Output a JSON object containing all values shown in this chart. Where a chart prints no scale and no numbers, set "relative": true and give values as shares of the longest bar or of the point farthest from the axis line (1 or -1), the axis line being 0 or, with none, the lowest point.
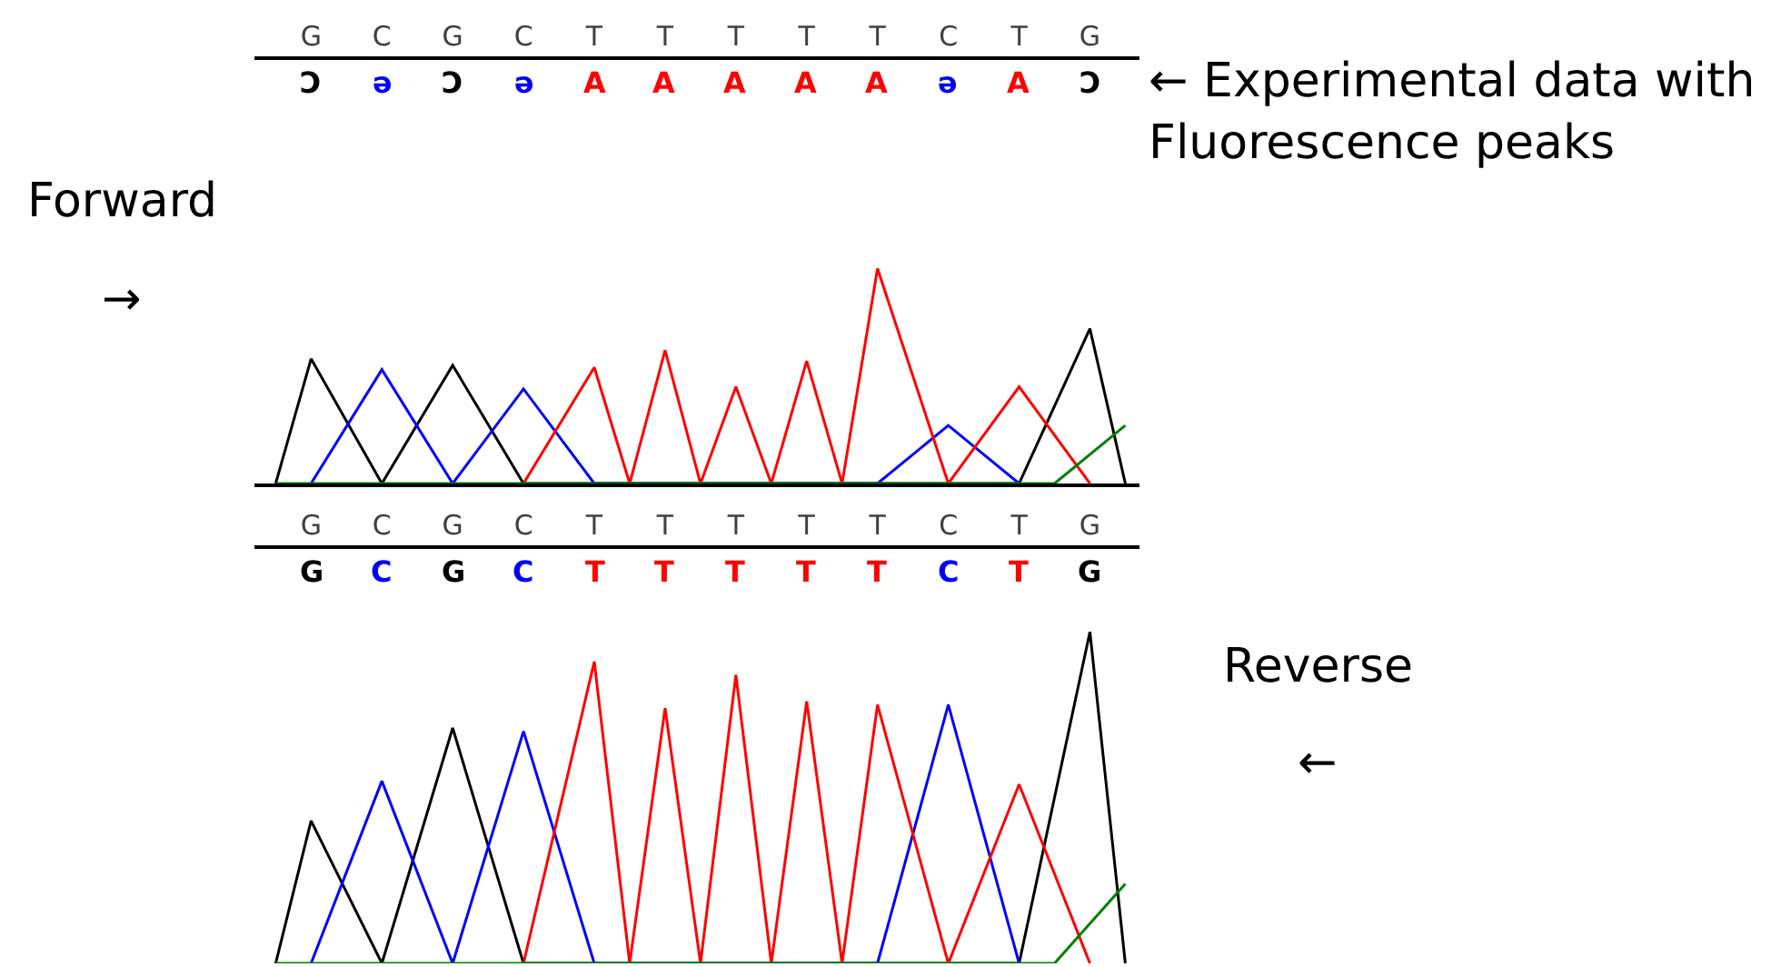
{
  "chart_data": [
    {
      "type": "line",
      "relative": true,
      "marker": "none",
      "line_style": "solid",
      "categories": [
        null,
        "G",
        null,
        "C",
        null,
        "G",
        null,
        "C",
        null,
        "T",
        null,
        "T",
        null,
        "T",
        null,
        "T",
        null,
        "T",
        null,
        "C",
        null,
        "T",
        null,
        "G",
        null
      ],
      "series": [
        {
          "color": "#000000",
          "values": [
            0,
            0.58,
            null,
            0,
            null,
            0.55,
            null,
            0,
            null,
            null,
            null,
            null,
            null,
            null,
            null,
            null,
            null,
            null,
            null,
            null,
            null,
            0,
            null,
            0.72,
            0
          ]
        },
        {
          "color": "#0000ff",
          "values": [
            null,
            0,
            null,
            0.53,
            null,
            0,
            null,
            0.44,
            null,
            0,
            null,
            null,
            null,
            null,
            null,
            null,
            null,
            0,
            null,
            0.27,
            null,
            0,
            null,
            null,
            null
          ]
        },
        {
          "color": "#ff0000",
          "values": [
            null,
            null,
            null,
            null,
            null,
            null,
            null,
            0,
            null,
            0.54,
            0,
            0.62,
            0,
            0.45,
            0,
            0.57,
            0,
            1,
            null,
            0,
            null,
            0.45,
            null,
            0,
            null
          ]
        },
        {
          "color": "#008000",
          "values": [
            0,
            null,
            null,
            null,
            null,
            null,
            null,
            null,
            null,
            null,
            null,
            null,
            null,
            null,
            null,
            null,
            null,
            null,
            null,
            null,
            null,
            null,
            0,
            null,
            0.27
          ]
        }
      ],
      "annotations": [
        "← Experimental data with\nFluorescence peaks",
        "Forward",
        "→",
        {
          "text": "Ɔ"
        },
        {
          "text": "ə"
        },
        {
          "text": "Ɔ"
        },
        {
          "text": "ə"
        },
        {
          "text": "A"
        },
        {
          "text": "A"
        },
        {
          "text": "A"
        },
        {
          "text": "A"
        },
        {
          "text": "A"
        },
        {
          "text": "ə"
        },
        {
          "text": "A"
        },
        {
          "text": "Ɔ"
        }
      ]
    },
    {
      "type": "line",
      "relative": true,
      "marker": "none",
      "line_style": "solid",
      "categories": [
        null,
        "G",
        null,
        "C",
        null,
        "G",
        null,
        "C",
        null,
        "T",
        null,
        "T",
        null,
        "T",
        null,
        "T",
        null,
        "T",
        null,
        "C",
        null,
        "T",
        null,
        "G",
        null
      ],
      "series": [
        {
          "color": "#000000",
          "values": [
            0,
            0.43,
            null,
            0,
            null,
            0.71,
            null,
            0,
            null,
            null,
            null,
            null,
            null,
            null,
            null,
            null,
            null,
            null,
            null,
            null,
            null,
            0,
            null,
            1,
            0
          ]
        },
        {
          "color": "#0000ff",
          "values": [
            null,
            0,
            null,
            0.55,
            null,
            0,
            null,
            0.7,
            null,
            0,
            null,
            null,
            null,
            null,
            null,
            null,
            null,
            0,
            null,
            0.78,
            null,
            0,
            null,
            null,
            null
          ]
        },
        {
          "color": "#ff0000",
          "values": [
            null,
            null,
            null,
            null,
            null,
            null,
            null,
            0,
            null,
            0.91,
            0,
            0.77,
            0,
            0.87,
            0,
            0.79,
            0,
            0.78,
            null,
            0,
            null,
            0.54,
            null,
            0,
            null
          ]
        },
        {
          "color": "#008000",
          "values": [
            0,
            null,
            null,
            null,
            null,
            null,
            null,
            null,
            null,
            null,
            null,
            null,
            null,
            null,
            null,
            null,
            null,
            null,
            null,
            null,
            null,
            null,
            0,
            null,
            0.24
          ]
        }
      ],
      "annotations": [
        "Reverse",
        "←",
        {
          "text": "G"
        },
        {
          "text": "C"
        },
        {
          "text": "G"
        },
        {
          "text": "C"
        },
        {
          "text": "T"
        },
        {
          "text": "T"
        },
        {
          "text": "T"
        },
        {
          "text": "T"
        },
        {
          "text": "T"
        },
        {
          "text": "C"
        },
        {
          "text": "T"
        },
        {
          "text": "G"
        }
      ]
    }
  ]
}
